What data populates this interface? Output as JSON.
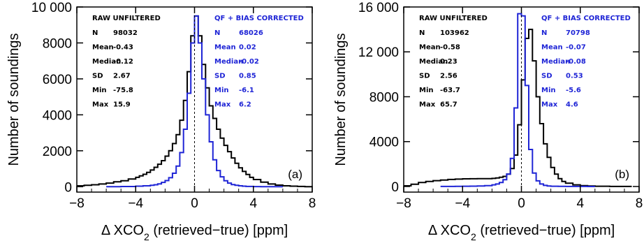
{
  "chart_data": [
    {
      "type": "line",
      "panel_label": "(a)",
      "xlabel": {
        "prefix": "Δ XCO",
        "sub": "2",
        "suffix": " (retrieved−true) [ppm]"
      },
      "ylabel": "Number of soundings",
      "xlim": [
        -8,
        8
      ],
      "ylim": [
        -300,
        10000
      ],
      "x_ticks": [
        "-8",
        "-4",
        "0",
        "4",
        "8"
      ],
      "x_tick_values": [
        -8,
        -4,
        0,
        4,
        8
      ],
      "y_ticks": [
        "0",
        "2000",
        "4000",
        "6000",
        "8000",
        "10 000"
      ],
      "y_tick_values": [
        0,
        2000,
        4000,
        6000,
        8000,
        10000
      ],
      "series": [
        {
          "name": "RAW UNFILTERED",
          "color": "#000000",
          "stats": [
            [
              "N",
              "98032"
            ],
            [
              "Mean",
              "-0.43"
            ],
            [
              "Median",
              "-0.12"
            ],
            [
              "SD",
              "2.67"
            ],
            [
              "Min",
              "-75.8"
            ],
            [
              "Max",
              "15.9"
            ]
          ],
          "x": [
            -8.0,
            -7.5,
            -7.0,
            -6.5,
            -6.0,
            -5.5,
            -5.0,
            -4.5,
            -4.0,
            -3.75,
            -3.5,
            -3.25,
            -3.0,
            -2.75,
            -2.5,
            -2.25,
            -2.0,
            -1.75,
            -1.5,
            -1.25,
            -1.0,
            -0.75,
            -0.5,
            -0.25,
            0.0,
            0.25,
            0.5,
            0.75,
            1.0,
            1.25,
            1.5,
            1.75,
            2.0,
            2.25,
            2.5,
            2.75,
            3.0,
            3.25,
            3.5,
            3.75,
            4.0,
            4.5,
            5.0,
            5.5,
            6.0,
            6.5,
            7.0,
            7.5
          ],
          "y": [
            50,
            80,
            110,
            150,
            200,
            270,
            330,
            430,
            520,
            600,
            690,
            800,
            930,
            1080,
            1250,
            1450,
            1700,
            2000,
            2400,
            2900,
            3700,
            4800,
            6400,
            8400,
            9500,
            8400,
            6800,
            5500,
            4500,
            3800,
            3200,
            2700,
            2300,
            1950,
            1600,
            1300,
            1050,
            850,
            680,
            520,
            400,
            250,
            150,
            90,
            50,
            30,
            15,
            5
          ]
        },
        {
          "name": "QF + BIAS CORRECTED",
          "color": "#1f25d6",
          "stats": [
            [
              "N",
              "68026"
            ],
            [
              "Mean",
              "0.02"
            ],
            [
              "Median",
              "-0.02"
            ],
            [
              "SD",
              "0.85"
            ],
            [
              "Min",
              "-6.1"
            ],
            [
              "Max",
              "6.2"
            ]
          ],
          "x": [
            -6.0,
            -5.0,
            -4.0,
            -3.5,
            -3.0,
            -2.75,
            -2.5,
            -2.25,
            -2.0,
            -1.75,
            -1.5,
            -1.25,
            -1.0,
            -0.75,
            -0.5,
            -0.25,
            0.0,
            0.25,
            0.5,
            0.75,
            1.0,
            1.25,
            1.5,
            1.75,
            2.0,
            2.25,
            2.5,
            2.75,
            3.0,
            3.25,
            3.5,
            4.0,
            4.5,
            5.0,
            5.5
          ],
          "y": [
            5,
            10,
            30,
            50,
            80,
            110,
            160,
            240,
            340,
            500,
            750,
            1150,
            1900,
            3200,
            5200,
            8000,
            9500,
            8000,
            6000,
            4000,
            2500,
            1500,
            900,
            550,
            330,
            200,
            120,
            80,
            50,
            30,
            15,
            8,
            4,
            2,
            1
          ]
        }
      ]
    },
    {
      "type": "line",
      "panel_label": "(b)",
      "xlabel": {
        "prefix": "Δ XCO",
        "sub": "2",
        "suffix": " (retrieved−true) [ppm]"
      },
      "ylabel": "Number of soundings",
      "xlim": [
        -8,
        8
      ],
      "ylim": [
        -500,
        16000
      ],
      "x_ticks": [
        "-8",
        "-4",
        "0",
        "4",
        "8"
      ],
      "x_tick_values": [
        -8,
        -4,
        0,
        4,
        8
      ],
      "y_ticks": [
        "0",
        "4000",
        "8000",
        "12 000",
        "16 000"
      ],
      "y_tick_values": [
        0,
        4000,
        8000,
        12000,
        16000
      ],
      "series": [
        {
          "name": "RAW UNFILTERED",
          "color": "#000000",
          "stats": [
            [
              "N",
              "103962"
            ],
            [
              "Mean",
              "-0.58"
            ],
            [
              "Median",
              "0.23"
            ],
            [
              "SD",
              "2.56"
            ],
            [
              "Min",
              "-63.7"
            ],
            [
              "Max",
              "65.7"
            ]
          ],
          "x": [
            -8.0,
            -7.5,
            -7.0,
            -6.5,
            -6.0,
            -5.5,
            -5.0,
            -4.5,
            -4.0,
            -3.5,
            -3.0,
            -2.5,
            -2.0,
            -1.75,
            -1.5,
            -1.25,
            -1.0,
            -0.75,
            -0.5,
            -0.25,
            0.0,
            0.25,
            0.5,
            0.75,
            1.0,
            1.25,
            1.5,
            1.75,
            2.0,
            2.25,
            2.5,
            2.75,
            3.0,
            3.5,
            4.0,
            4.5,
            5.0,
            6.0,
            7.0
          ],
          "y": [
            60,
            200,
            350,
            450,
            520,
            580,
            630,
            660,
            680,
            690,
            700,
            700,
            720,
            760,
            820,
            900,
            1100,
            1600,
            2800,
            5500,
            9500,
            13200,
            14000,
            11200,
            8000,
            5600,
            3800,
            2600,
            1700,
            1100,
            700,
            450,
            300,
            150,
            80,
            40,
            20,
            5,
            2
          ]
        },
        {
          "name": "QF + BIAS CORRECTED",
          "color": "#1f25d6",
          "stats": [
            [
              "N",
              "70798"
            ],
            [
              "Mean",
              "-0.07"
            ],
            [
              "Median",
              "-0.08"
            ],
            [
              "SD",
              "0.53"
            ],
            [
              "Min",
              "-5.6"
            ],
            [
              "Max",
              "4.6"
            ]
          ],
          "x": [
            -5.5,
            -4.5,
            -4.0,
            -3.5,
            -3.0,
            -2.5,
            -2.0,
            -1.75,
            -1.5,
            -1.25,
            -1.0,
            -0.75,
            -0.5,
            -0.25,
            0.0,
            0.25,
            0.5,
            0.75,
            1.0,
            1.25,
            1.5,
            1.75,
            2.0,
            2.5,
            3.0,
            3.5,
            4.0,
            4.5
          ],
          "y": [
            5,
            10,
            20,
            30,
            50,
            80,
            150,
            220,
            350,
            600,
            1100,
            2500,
            7000,
            15400,
            15200,
            9000,
            3300,
            1200,
            500,
            220,
            100,
            50,
            25,
            10,
            5,
            3,
            2,
            1
          ]
        }
      ]
    }
  ]
}
